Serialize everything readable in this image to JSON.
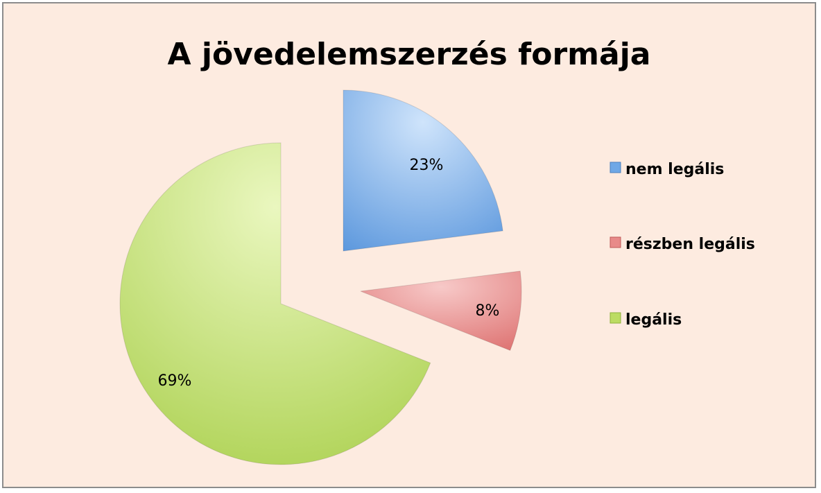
{
  "chart_data": {
    "type": "pie",
    "title": "A jövedelemszerzés formája",
    "slices": [
      {
        "label": "nem legális",
        "value": 23,
        "display": "23%",
        "color": "#6fa8e6"
      },
      {
        "label": "részben legális",
        "value": 8,
        "display": "8%",
        "color": "#e88a89"
      },
      {
        "label": "legális",
        "value": 69,
        "display": "69%",
        "color": "#bcdc63"
      }
    ],
    "exploded": true,
    "start_angle": "top, clockwise",
    "legend_position": "right",
    "background": "#fdebe0"
  }
}
